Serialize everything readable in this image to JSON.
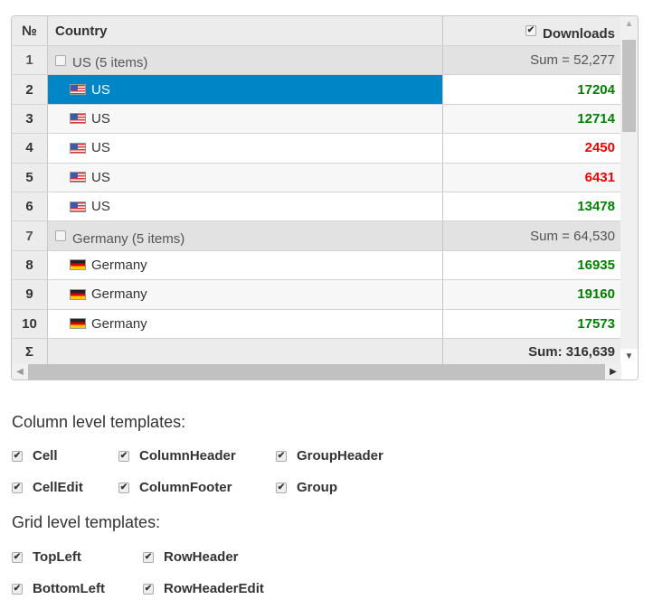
{
  "grid": {
    "headers": {
      "num": "№",
      "country": "Country",
      "downloads": "Downloads"
    },
    "rows": [
      {
        "num": "1",
        "type": "group",
        "country": "US (5 items)",
        "value": "Sum = 52,277"
      },
      {
        "num": "2",
        "type": "data",
        "flag": "us",
        "country": "US",
        "value": "17204",
        "color": "green",
        "selected": true
      },
      {
        "num": "3",
        "type": "data",
        "flag": "us",
        "country": "US",
        "value": "12714",
        "color": "green"
      },
      {
        "num": "4",
        "type": "data",
        "flag": "us",
        "country": "US",
        "value": "2450",
        "color": "red"
      },
      {
        "num": "5",
        "type": "data",
        "flag": "us",
        "country": "US",
        "value": "6431",
        "color": "red"
      },
      {
        "num": "6",
        "type": "data",
        "flag": "us",
        "country": "US",
        "value": "13478",
        "color": "green"
      },
      {
        "num": "7",
        "type": "group",
        "country": "Germany (5 items)",
        "value": "Sum = 64,530"
      },
      {
        "num": "8",
        "type": "data",
        "flag": "de",
        "country": "Germany",
        "value": "16935",
        "color": "green"
      },
      {
        "num": "9",
        "type": "data",
        "flag": "de",
        "country": "Germany",
        "value": "19160",
        "color": "green"
      },
      {
        "num": "10",
        "type": "data",
        "flag": "de",
        "country": "Germany",
        "value": "17573",
        "color": "green"
      }
    ],
    "footer": {
      "num": "Σ",
      "value": "Sum: 316,639"
    },
    "colors": {
      "selected": "#0085c7",
      "positive": "#008000",
      "negative": "#e00000"
    }
  },
  "column_templates": {
    "title": "Column level templates:",
    "options": [
      "Cell",
      "ColumnHeader",
      "GroupHeader",
      "CellEdit",
      "ColumnFooter",
      "Group"
    ]
  },
  "grid_templates": {
    "title": "Grid level templates:",
    "options": [
      "TopLeft",
      "RowHeader",
      "BottomLeft",
      "RowHeaderEdit"
    ]
  }
}
